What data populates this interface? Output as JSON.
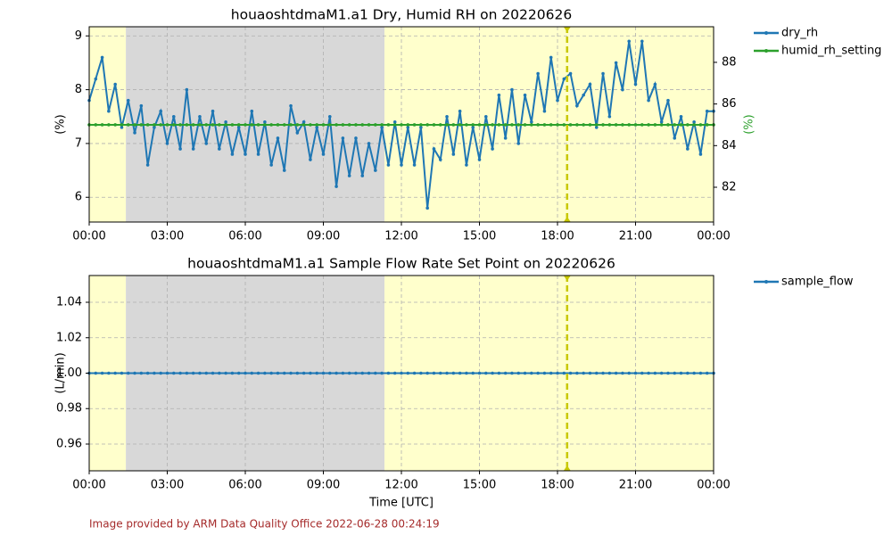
{
  "chart_data": [
    {
      "type": "line",
      "title": "houaoshtdmaM1.a1 Dry, Humid RH on 20220626",
      "ylabel": "(%)",
      "y2label": "(%)",
      "xlim": [
        0,
        24
      ],
      "xticks": [
        {
          "value": 0,
          "label": "00:00"
        },
        {
          "value": 3,
          "label": "03:00"
        },
        {
          "value": 6,
          "label": "06:00"
        },
        {
          "value": 9,
          "label": "09:00"
        },
        {
          "value": 12,
          "label": "12:00"
        },
        {
          "value": 15,
          "label": "15:00"
        },
        {
          "value": 18,
          "label": "18:00"
        },
        {
          "value": 21,
          "label": "21:00"
        },
        {
          "value": 24,
          "label": "00:00"
        }
      ],
      "ylim": [
        5.54,
        9.17
      ],
      "yticks": [
        6,
        7,
        8,
        9
      ],
      "y2lim": [
        80.33,
        89.71
      ],
      "y2ticks": [
        82,
        84,
        86,
        88
      ],
      "grid": true,
      "spans": [
        {
          "start": 0,
          "end": 1.41,
          "color": "#ffffcc"
        },
        {
          "start": 1.41,
          "end": 11.35,
          "color": "#d8d8d8"
        },
        {
          "start": 11.35,
          "end": 24,
          "color": "#ffffcc"
        }
      ],
      "vline": {
        "x": 18.37,
        "color": "#c8c800"
      },
      "x": [
        0,
        0.25,
        0.5,
        0.75,
        1,
        1.25,
        1.5,
        1.75,
        2,
        2.25,
        2.5,
        2.75,
        3,
        3.25,
        3.5,
        3.75,
        4,
        4.25,
        4.5,
        4.75,
        5,
        5.25,
        5.5,
        5.75,
        6,
        6.25,
        6.5,
        6.75,
        7,
        7.25,
        7.5,
        7.75,
        8,
        8.25,
        8.5,
        8.75,
        9,
        9.25,
        9.5,
        9.75,
        10,
        10.25,
        10.5,
        10.75,
        11,
        11.25,
        11.5,
        11.75,
        12,
        12.25,
        12.5,
        12.75,
        13,
        13.25,
        13.5,
        13.75,
        14,
        14.25,
        14.5,
        14.75,
        15,
        15.25,
        15.5,
        15.75,
        16,
        16.25,
        16.5,
        16.75,
        17,
        17.25,
        17.5,
        17.75,
        18,
        18.25,
        18.5,
        18.75,
        19,
        19.25,
        19.5,
        19.75,
        20,
        20.25,
        20.5,
        20.75,
        21,
        21.25,
        21.5,
        21.75,
        22,
        22.25,
        22.5,
        22.75,
        23,
        23.25,
        23.5,
        23.75,
        24
      ],
      "series": [
        {
          "name": "dry_rh",
          "color": "#1f77b4",
          "values": [
            7.8,
            8.2,
            8.6,
            7.6,
            8.1,
            7.3,
            7.8,
            7.2,
            7.7,
            6.6,
            7.3,
            7.6,
            7.0,
            7.5,
            6.9,
            8.0,
            6.9,
            7.5,
            7.0,
            7.6,
            6.9,
            7.4,
            6.8,
            7.3,
            6.8,
            7.6,
            6.8,
            7.4,
            6.6,
            7.1,
            6.5,
            7.7,
            7.2,
            7.4,
            6.7,
            7.3,
            6.8,
            7.5,
            6.2,
            7.1,
            6.4,
            7.1,
            6.4,
            7.0,
            6.5,
            7.3,
            6.6,
            7.4,
            6.6,
            7.3,
            6.6,
            7.3,
            5.8,
            6.9,
            6.7,
            7.5,
            6.8,
            7.6,
            6.6,
            7.3,
            6.7,
            7.5,
            6.9,
            7.9,
            7.1,
            8.0,
            7.0,
            7.9,
            7.4,
            8.3,
            7.6,
            8.6,
            7.8,
            8.2,
            8.3,
            7.7,
            7.9,
            8.1,
            7.3,
            8.3,
            7.5,
            8.5,
            8.0,
            8.9,
            8.1,
            8.9,
            7.8,
            8.1,
            7.4,
            7.8,
            7.1,
            7.5,
            6.9,
            7.4,
            6.8,
            7.6,
            7.6
          ]
        },
        {
          "name": "humid_rh_setting",
          "color": "#2ca02c",
          "axis": "y2",
          "values": [
            85,
            85,
            85,
            85,
            85,
            85,
            85,
            85,
            85,
            85,
            85,
            85,
            85,
            85,
            85,
            85,
            85,
            85,
            85,
            85,
            85,
            85,
            85,
            85,
            85,
            85,
            85,
            85,
            85,
            85,
            85,
            85,
            85,
            85,
            85,
            85,
            85,
            85,
            85,
            85,
            85,
            85,
            85,
            85,
            85,
            85,
            85,
            85,
            85,
            85,
            85,
            85,
            85,
            85,
            85,
            85,
            85,
            85,
            85,
            85,
            85,
            85,
            85,
            85,
            85,
            85,
            85,
            85,
            85,
            85,
            85,
            85,
            85,
            85,
            85,
            85,
            85,
            85,
            85,
            85,
            85,
            85,
            85,
            85,
            85,
            85,
            85,
            85,
            85,
            85,
            85,
            85,
            85,
            85,
            85,
            85,
            85
          ]
        }
      ]
    },
    {
      "type": "line",
      "title": "houaoshtdmaM1.a1 Sample Flow Rate Set Point on 20220626",
      "ylabel": "(L/min)",
      "xlabel": "Time [UTC]",
      "xlim": [
        0,
        24
      ],
      "xticks": [
        {
          "value": 0,
          "label": "00:00"
        },
        {
          "value": 3,
          "label": "03:00"
        },
        {
          "value": 6,
          "label": "06:00"
        },
        {
          "value": 9,
          "label": "09:00"
        },
        {
          "value": 12,
          "label": "12:00"
        },
        {
          "value": 15,
          "label": "15:00"
        },
        {
          "value": 18,
          "label": "18:00"
        },
        {
          "value": 21,
          "label": "21:00"
        },
        {
          "value": 24,
          "label": "00:00"
        }
      ],
      "ylim": [
        0.9449,
        1.0551
      ],
      "yticks": [
        0.96,
        0.98,
        {
          "value": 1,
          "label": "1.00"
        },
        1.02,
        1.04
      ],
      "grid": true,
      "spans": [
        {
          "start": 0,
          "end": 1.41,
          "color": "#ffffcc"
        },
        {
          "start": 1.41,
          "end": 11.35,
          "color": "#d8d8d8"
        },
        {
          "start": 11.35,
          "end": 24,
          "color": "#ffffcc"
        }
      ],
      "vline": {
        "x": 18.37,
        "color": "#c8c800"
      },
      "x": [
        0,
        0.25,
        0.5,
        0.75,
        1,
        1.25,
        1.5,
        1.75,
        2,
        2.25,
        2.5,
        2.75,
        3,
        3.25,
        3.5,
        3.75,
        4,
        4.25,
        4.5,
        4.75,
        5,
        5.25,
        5.5,
        5.75,
        6,
        6.25,
        6.5,
        6.75,
        7,
        7.25,
        7.5,
        7.75,
        8,
        8.25,
        8.5,
        8.75,
        9,
        9.25,
        9.5,
        9.75,
        10,
        10.25,
        10.5,
        10.75,
        11,
        11.25,
        11.5,
        11.75,
        12,
        12.25,
        12.5,
        12.75,
        13,
        13.25,
        13.5,
        13.75,
        14,
        14.25,
        14.5,
        14.75,
        15,
        15.25,
        15.5,
        15.75,
        16,
        16.25,
        16.5,
        16.75,
        17,
        17.25,
        17.5,
        17.75,
        18,
        18.25,
        18.5,
        18.75,
        19,
        19.25,
        19.5,
        19.75,
        20,
        20.25,
        20.5,
        20.75,
        21,
        21.25,
        21.5,
        21.75,
        22,
        22.25,
        22.5,
        22.75,
        23,
        23.25,
        23.5,
        23.75,
        24
      ],
      "series": [
        {
          "name": "sample_flow",
          "color": "#1f77b4",
          "values": [
            1,
            1,
            1,
            1,
            1,
            1,
            1,
            1,
            1,
            1,
            1,
            1,
            1,
            1,
            1,
            1,
            1,
            1,
            1,
            1,
            1,
            1,
            1,
            1,
            1,
            1,
            1,
            1,
            1,
            1,
            1,
            1,
            1,
            1,
            1,
            1,
            1,
            1,
            1,
            1,
            1,
            1,
            1,
            1,
            1,
            1,
            1,
            1,
            1,
            1,
            1,
            1,
            1,
            1,
            1,
            1,
            1,
            1,
            1,
            1,
            1,
            1,
            1,
            1,
            1,
            1,
            1,
            1,
            1,
            1,
            1,
            1,
            1,
            1,
            1,
            1,
            1,
            1,
            1,
            1,
            1,
            1,
            1,
            1,
            1,
            1,
            1,
            1,
            1,
            1,
            1,
            1,
            1,
            1,
            1,
            1,
            1
          ]
        }
      ]
    }
  ],
  "footer": "Image provided by ARM Data Quality Office 2022-06-28 00:24:19"
}
